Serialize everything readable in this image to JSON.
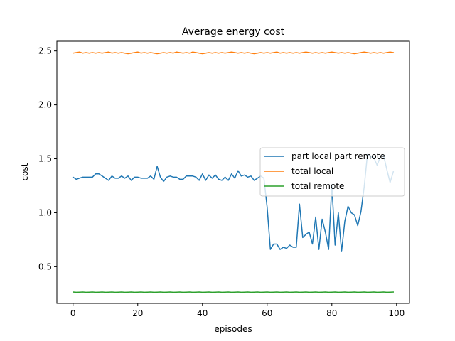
{
  "chart_data": {
    "type": "line",
    "title": "Average energy cost",
    "xlabel": "episodes",
    "ylabel": "cost",
    "xlim": [
      -5,
      104
    ],
    "ylim": [
      0.16,
      2.59
    ],
    "xticks": [
      0,
      20,
      40,
      60,
      80,
      100
    ],
    "xtick_labels": [
      "0",
      "20",
      "40",
      "60",
      "80",
      "100"
    ],
    "yticks": [
      0.5,
      1.0,
      1.5,
      2.0,
      2.5
    ],
    "ytick_labels": [
      "0.5",
      "1.0",
      "1.5",
      "2.0",
      "2.5"
    ],
    "grid": false,
    "legend_position": "center-right",
    "series": [
      {
        "name": "part local part remote",
        "color": "#1f77b4",
        "x": [
          0,
          1,
          2,
          3,
          4,
          5,
          6,
          7,
          8,
          9,
          10,
          11,
          12,
          13,
          14,
          15,
          16,
          17,
          18,
          19,
          20,
          21,
          22,
          23,
          24,
          25,
          26,
          27,
          28,
          29,
          30,
          31,
          32,
          33,
          34,
          35,
          36,
          37,
          38,
          39,
          40,
          41,
          42,
          43,
          44,
          45,
          46,
          47,
          48,
          49,
          50,
          51,
          52,
          53,
          54,
          55,
          56,
          57,
          58,
          59,
          60,
          61,
          62,
          63,
          64,
          65,
          66,
          67,
          68,
          69,
          70,
          71,
          72,
          73,
          74,
          75,
          76,
          77,
          78,
          79,
          80,
          81,
          82,
          83,
          84,
          85,
          86,
          87,
          88,
          89,
          90,
          91,
          92,
          93,
          94,
          95,
          96,
          97,
          98,
          99
        ],
        "values": [
          1.33,
          1.31,
          1.32,
          1.33,
          1.33,
          1.33,
          1.33,
          1.36,
          1.36,
          1.34,
          1.32,
          1.3,
          1.34,
          1.32,
          1.32,
          1.34,
          1.32,
          1.34,
          1.3,
          1.33,
          1.33,
          1.32,
          1.32,
          1.32,
          1.34,
          1.31,
          1.43,
          1.33,
          1.29,
          1.33,
          1.34,
          1.33,
          1.33,
          1.31,
          1.31,
          1.34,
          1.34,
          1.34,
          1.33,
          1.3,
          1.36,
          1.3,
          1.35,
          1.32,
          1.35,
          1.31,
          1.3,
          1.33,
          1.3,
          1.36,
          1.32,
          1.39,
          1.34,
          1.35,
          1.33,
          1.34,
          1.3,
          1.32,
          1.34,
          1.32,
          1.05,
          0.66,
          0.71,
          0.71,
          0.66,
          0.68,
          0.67,
          0.7,
          0.68,
          0.68,
          1.08,
          0.77,
          0.8,
          0.82,
          0.71,
          0.96,
          0.66,
          0.94,
          0.82,
          0.66,
          1.26,
          0.7,
          1.0,
          0.64,
          0.92,
          1.06,
          1.0,
          0.98,
          0.88,
          1.01,
          1.24,
          1.54,
          1.52,
          1.51,
          1.44,
          1.52,
          1.53,
          1.4,
          1.28,
          1.38
        ]
      },
      {
        "name": "total local",
        "color": "#ff7f0e",
        "x": [
          0,
          1,
          2,
          3,
          4,
          5,
          6,
          7,
          8,
          9,
          10,
          11,
          12,
          13,
          14,
          15,
          16,
          17,
          18,
          19,
          20,
          21,
          22,
          23,
          24,
          25,
          26,
          27,
          28,
          29,
          30,
          31,
          32,
          33,
          34,
          35,
          36,
          37,
          38,
          39,
          40,
          41,
          42,
          43,
          44,
          45,
          46,
          47,
          48,
          49,
          50,
          51,
          52,
          53,
          54,
          55,
          56,
          57,
          58,
          59,
          60,
          61,
          62,
          63,
          64,
          65,
          66,
          67,
          68,
          69,
          70,
          71,
          72,
          73,
          74,
          75,
          76,
          77,
          78,
          79,
          80,
          81,
          82,
          83,
          84,
          85,
          86,
          87,
          88,
          89,
          90,
          91,
          92,
          93,
          94,
          95,
          96,
          97,
          98,
          99
        ],
        "values": [
          2.48,
          2.485,
          2.49,
          2.48,
          2.485,
          2.48,
          2.485,
          2.48,
          2.485,
          2.48,
          2.485,
          2.49,
          2.48,
          2.485,
          2.48,
          2.485,
          2.48,
          2.475,
          2.48,
          2.485,
          2.49,
          2.48,
          2.485,
          2.48,
          2.485,
          2.48,
          2.475,
          2.48,
          2.485,
          2.48,
          2.485,
          2.48,
          2.49,
          2.485,
          2.48,
          2.485,
          2.48,
          2.49,
          2.485,
          2.48,
          2.475,
          2.48,
          2.485,
          2.48,
          2.485,
          2.48,
          2.485,
          2.48,
          2.485,
          2.49,
          2.485,
          2.48,
          2.485,
          2.48,
          2.485,
          2.48,
          2.475,
          2.48,
          2.485,
          2.48,
          2.485,
          2.48,
          2.485,
          2.49,
          2.48,
          2.485,
          2.48,
          2.485,
          2.48,
          2.485,
          2.48,
          2.485,
          2.49,
          2.485,
          2.48,
          2.485,
          2.48,
          2.485,
          2.48,
          2.485,
          2.49,
          2.485,
          2.48,
          2.485,
          2.48,
          2.485,
          2.48,
          2.475,
          2.48,
          2.485,
          2.49,
          2.485,
          2.48,
          2.485,
          2.48,
          2.485,
          2.48,
          2.485,
          2.49,
          2.485
        ]
      },
      {
        "name": "total remote",
        "color": "#2ca02c",
        "x": [
          0,
          1,
          2,
          3,
          4,
          5,
          6,
          7,
          8,
          9,
          10,
          11,
          12,
          13,
          14,
          15,
          16,
          17,
          18,
          19,
          20,
          21,
          22,
          23,
          24,
          25,
          26,
          27,
          28,
          29,
          30,
          31,
          32,
          33,
          34,
          35,
          36,
          37,
          38,
          39,
          40,
          41,
          42,
          43,
          44,
          45,
          46,
          47,
          48,
          49,
          50,
          51,
          52,
          53,
          54,
          55,
          56,
          57,
          58,
          59,
          60,
          61,
          62,
          63,
          64,
          65,
          66,
          67,
          68,
          69,
          70,
          71,
          72,
          73,
          74,
          75,
          76,
          77,
          78,
          79,
          80,
          81,
          82,
          83,
          84,
          85,
          86,
          87,
          88,
          89,
          90,
          91,
          92,
          93,
          94,
          95,
          96,
          97,
          98,
          99
        ],
        "values": [
          0.265,
          0.263,
          0.264,
          0.265,
          0.263,
          0.264,
          0.265,
          0.263,
          0.264,
          0.265,
          0.263,
          0.264,
          0.265,
          0.263,
          0.264,
          0.265,
          0.263,
          0.264,
          0.265,
          0.263,
          0.264,
          0.265,
          0.263,
          0.264,
          0.265,
          0.263,
          0.264,
          0.265,
          0.263,
          0.264,
          0.265,
          0.263,
          0.264,
          0.265,
          0.263,
          0.264,
          0.265,
          0.263,
          0.264,
          0.265,
          0.263,
          0.264,
          0.265,
          0.263,
          0.264,
          0.265,
          0.263,
          0.264,
          0.265,
          0.263,
          0.264,
          0.265,
          0.263,
          0.264,
          0.265,
          0.263,
          0.264,
          0.265,
          0.263,
          0.264,
          0.265,
          0.263,
          0.264,
          0.265,
          0.263,
          0.264,
          0.265,
          0.263,
          0.264,
          0.265,
          0.263,
          0.264,
          0.265,
          0.263,
          0.264,
          0.265,
          0.263,
          0.264,
          0.265,
          0.263,
          0.264,
          0.265,
          0.263,
          0.264,
          0.265,
          0.263,
          0.264,
          0.265,
          0.263,
          0.264,
          0.265,
          0.263,
          0.264,
          0.265,
          0.263,
          0.264,
          0.265,
          0.263,
          0.264,
          0.265
        ]
      }
    ]
  }
}
